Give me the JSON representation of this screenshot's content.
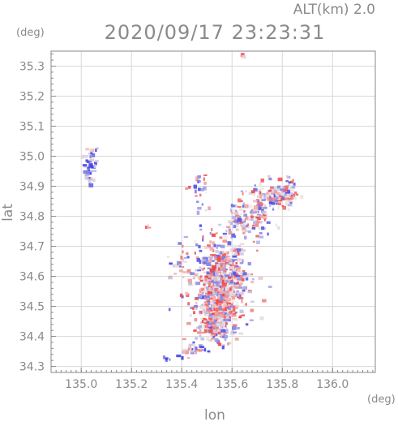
{
  "chart_data": {
    "type": "scatter",
    "alt_label": "ALT(km) 2.0",
    "timestamp": "2020/09/17 23:23:31",
    "xlabel": "lon",
    "ylabel": "lat",
    "x_unit": "(deg)",
    "y_unit": "(deg)",
    "xlim": [
      134.88,
      136.17
    ],
    "ylim": [
      34.28,
      35.35
    ],
    "x_ticks": [
      135.0,
      135.2,
      135.4,
      135.6,
      135.8,
      136.0
    ],
    "x_tick_labels": [
      "135.0",
      "135.2",
      "135.4",
      "135.6",
      "135.8",
      "136.0"
    ],
    "y_ticks": [
      34.3,
      34.4,
      34.5,
      34.6,
      34.7,
      34.8,
      34.9,
      35.0,
      35.1,
      35.2,
      35.3
    ],
    "y_tick_labels": [
      "34.3",
      "34.4",
      "34.5",
      "34.6",
      "34.7",
      "34.8",
      "34.9",
      "35.0",
      "35.1",
      "35.2",
      "35.3"
    ],
    "colors": {
      "positive": "#ee4444",
      "negative": "#4444dd",
      "axis": "#8a8a8a",
      "grid": "#d8d8d8"
    },
    "clusters": [
      {
        "lon": 135.04,
        "lat": 34.975,
        "sx": 0.015,
        "sy": 0.035,
        "n": 45,
        "bias": -0.6
      },
      {
        "lon": 135.555,
        "lat": 34.59,
        "sx": 0.06,
        "sy": 0.065,
        "n": 560,
        "bias": 0.05
      },
      {
        "lon": 135.545,
        "lat": 34.49,
        "sx": 0.04,
        "sy": 0.045,
        "n": 260,
        "bias": 0.25
      },
      {
        "lon": 135.53,
        "lat": 34.42,
        "sx": 0.04,
        "sy": 0.025,
        "n": 70,
        "bias": 0.0
      },
      {
        "lon": 135.77,
        "lat": 34.87,
        "sx": 0.05,
        "sy": 0.025,
        "n": 120,
        "bias": 0.0
      },
      {
        "lon": 135.69,
        "lat": 34.79,
        "sx": 0.035,
        "sy": 0.035,
        "n": 80,
        "bias": 0.0
      },
      {
        "lon": 135.62,
        "lat": 34.78,
        "sx": 0.02,
        "sy": 0.03,
        "n": 40,
        "bias": 0.0
      },
      {
        "lon": 135.45,
        "lat": 34.355,
        "sx": 0.03,
        "sy": 0.01,
        "n": 35,
        "bias": -0.4
      },
      {
        "lon": 135.47,
        "lat": 34.86,
        "sx": 0.02,
        "sy": 0.05,
        "n": 25,
        "bias": 0.0
      },
      {
        "lon": 135.39,
        "lat": 34.65,
        "sx": 0.02,
        "sy": 0.03,
        "n": 25,
        "bias": -0.2
      },
      {
        "lon": 135.83,
        "lat": 34.89,
        "sx": 0.015,
        "sy": 0.02,
        "n": 25,
        "bias": 0.0
      },
      {
        "lon": 135.34,
        "lat": 34.325,
        "sx": 0.006,
        "sy": 0.004,
        "n": 6,
        "bias": -0.5
      },
      {
        "lon": 135.27,
        "lat": 34.765,
        "sx": 0.006,
        "sy": 0.004,
        "n": 4,
        "bias": 0.3
      },
      {
        "lon": 135.64,
        "lat": 35.335,
        "sx": 0.004,
        "sy": 0.004,
        "n": 3,
        "bias": 0.6
      }
    ]
  }
}
